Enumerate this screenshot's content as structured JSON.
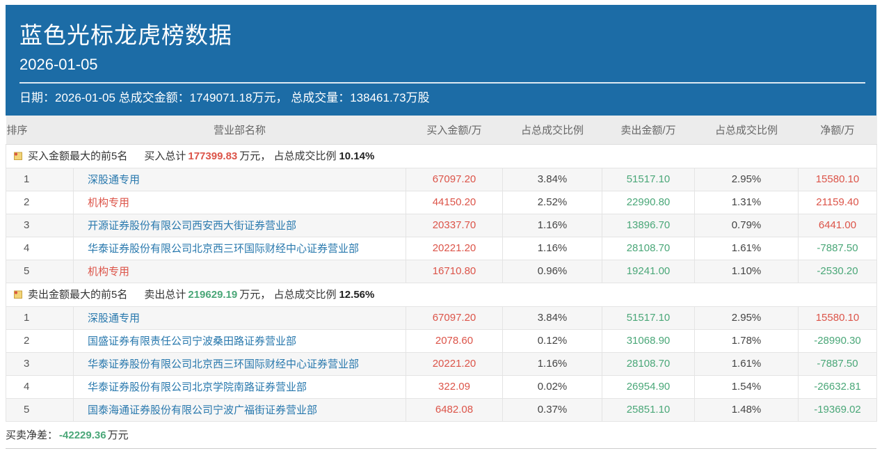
{
  "colors": {
    "header_blue": "#1c6ca6",
    "red": "#dc5449",
    "green": "#4aa778",
    "blue": "#2878ad"
  },
  "header": {
    "title": "蓝色光标龙虎榜数据",
    "date": "2026-01-05",
    "info": "日期：2026-01-05 总成交金额：1749071.18万元， 总成交量：138461.73万股"
  },
  "table": {
    "columns": [
      "排序",
      "营业部名称",
      "买入金额/万",
      "占总成交比例",
      "卖出金额/万",
      "占总成交比例",
      "净额/万"
    ]
  },
  "sections": [
    {
      "label": "买入金额最大的前5名",
      "total_label": "买入总计",
      "total_value": "177399.83",
      "total_color": "red",
      "total_unit": "万元，",
      "ratio_label": "占总成交比例",
      "ratio_value": "10.14%",
      "rows": [
        {
          "rank": "1",
          "name": "深股通专用",
          "name_color": "blue",
          "buy": "67097.20",
          "buy_pct": "3.84%",
          "sell": "51517.10",
          "sell_pct": "2.95%",
          "net": "15580.10",
          "net_color": "red"
        },
        {
          "rank": "2",
          "name": "机构专用",
          "name_color": "red",
          "buy": "44150.20",
          "buy_pct": "2.52%",
          "sell": "22990.80",
          "sell_pct": "1.31%",
          "net": "21159.40",
          "net_color": "red"
        },
        {
          "rank": "3",
          "name": "开源证券股份有限公司西安西大街证券营业部",
          "name_color": "blue",
          "buy": "20337.70",
          "buy_pct": "1.16%",
          "sell": "13896.70",
          "sell_pct": "0.79%",
          "net": "6441.00",
          "net_color": "red"
        },
        {
          "rank": "4",
          "name": "华泰证券股份有限公司北京西三环国际财经中心证券营业部",
          "name_color": "blue",
          "buy": "20221.20",
          "buy_pct": "1.16%",
          "sell": "28108.70",
          "sell_pct": "1.61%",
          "net": "-7887.50",
          "net_color": "green"
        },
        {
          "rank": "5",
          "name": "机构专用",
          "name_color": "red",
          "buy": "16710.80",
          "buy_pct": "0.96%",
          "sell": "19241.00",
          "sell_pct": "1.10%",
          "net": "-2530.20",
          "net_color": "green"
        }
      ]
    },
    {
      "label": "卖出金额最大的前5名",
      "total_label": "卖出总计",
      "total_value": "219629.19",
      "total_color": "green",
      "total_unit": "万元，",
      "ratio_label": "占总成交比例",
      "ratio_value": "12.56%",
      "rows": [
        {
          "rank": "1",
          "name": "深股通专用",
          "name_color": "blue",
          "buy": "67097.20",
          "buy_pct": "3.84%",
          "sell": "51517.10",
          "sell_pct": "2.95%",
          "net": "15580.10",
          "net_color": "red"
        },
        {
          "rank": "2",
          "name": "国盛证券有限责任公司宁波桑田路证券营业部",
          "name_color": "blue",
          "buy": "2078.60",
          "buy_pct": "0.12%",
          "sell": "31068.90",
          "sell_pct": "1.78%",
          "net": "-28990.30",
          "net_color": "green"
        },
        {
          "rank": "3",
          "name": "华泰证券股份有限公司北京西三环国际财经中心证券营业部",
          "name_color": "blue",
          "buy": "20221.20",
          "buy_pct": "1.16%",
          "sell": "28108.70",
          "sell_pct": "1.61%",
          "net": "-7887.50",
          "net_color": "green"
        },
        {
          "rank": "4",
          "name": "华泰证券股份有限公司北京学院南路证券营业部",
          "name_color": "blue",
          "buy": "322.09",
          "buy_pct": "0.02%",
          "sell": "26954.90",
          "sell_pct": "1.54%",
          "net": "-26632.81",
          "net_color": "green"
        },
        {
          "rank": "5",
          "name": "国泰海通证券股份有限公司宁波广福街证券营业部",
          "name_color": "blue",
          "buy": "6482.08",
          "buy_pct": "0.37%",
          "sell": "25851.10",
          "sell_pct": "1.48%",
          "net": "-19369.02",
          "net_color": "green"
        }
      ]
    }
  ],
  "footer": {
    "label": "买卖净差：",
    "value": "-42229.36",
    "value_color": "green",
    "unit": "万元"
  }
}
